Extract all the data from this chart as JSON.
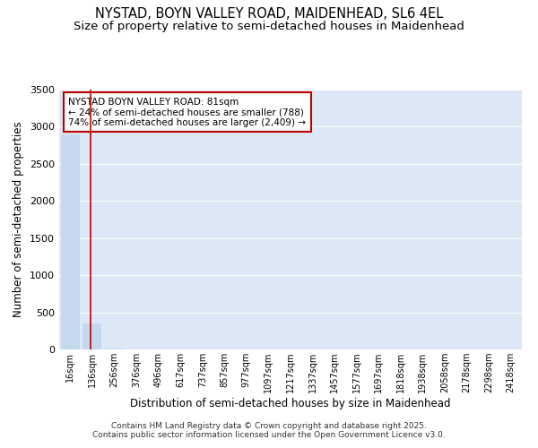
{
  "title1": "NYSTAD, BOYN VALLEY ROAD, MAIDENHEAD, SL6 4EL",
  "title2": "Size of property relative to semi-detached houses in Maidenhead",
  "xlabel": "Distribution of semi-detached houses by size in Maidenhead",
  "ylabel": "Number of semi-detached properties",
  "bins": [
    "16sqm",
    "136sqm",
    "256sqm",
    "376sqm",
    "496sqm",
    "617sqm",
    "737sqm",
    "857sqm",
    "977sqm",
    "1097sqm",
    "1217sqm",
    "1337sqm",
    "1457sqm",
    "1577sqm",
    "1697sqm",
    "1818sqm",
    "1938sqm",
    "2058sqm",
    "2178sqm",
    "2298sqm",
    "2418sqm"
  ],
  "values": [
    2900,
    350,
    8,
    4,
    2,
    1,
    1,
    0,
    0,
    0,
    0,
    0,
    0,
    0,
    0,
    0,
    0,
    0,
    0,
    0,
    0
  ],
  "vline_pos": 1,
  "highlight_color": "#c00000",
  "bar_color": "#c5d8ee",
  "grid_color": "#c8d8f0",
  "background_color": "#dce8f5",
  "annotation_text": "NYSTAD BOYN VALLEY ROAD: 81sqm\n← 24% of semi-detached houses are smaller (788)\n74% of semi-detached houses are larger (2,409) →",
  "annotation_box_color": "#c00000",
  "footer": "Contains HM Land Registry data © Crown copyright and database right 2025.\nContains public sector information licensed under the Open Government Licence v3.0.",
  "ylim": [
    0,
    3500
  ],
  "title_fontsize": 10.5,
  "subtitle_fontsize": 9.5,
  "axis_fontsize": 8.5,
  "tick_fontsize": 7
}
